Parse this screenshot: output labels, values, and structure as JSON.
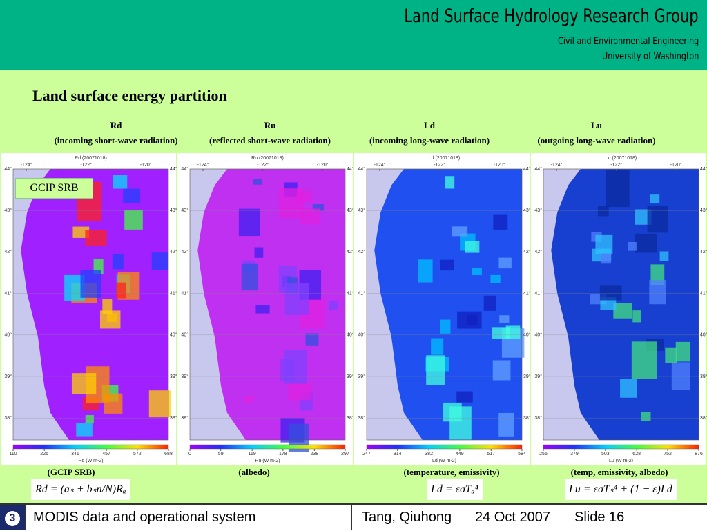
{
  "header": {
    "title": "Land Surface Hydrology Research Group",
    "subtitle": [
      "Civil and Environmental Engineering",
      "University of Washington"
    ]
  },
  "slide_title": "Land surface energy partition",
  "overlay_label": "GCIP SRB",
  "map_axes": {
    "lon_ticks": [
      {
        "value": -124,
        "label": "-124°"
      },
      {
        "value": -122,
        "label": "-122°"
      },
      {
        "value": -120,
        "label": "-120°"
      }
    ],
    "lat_ticks": [
      {
        "value": 44,
        "label": "44°"
      },
      {
        "value": 43,
        "label": "43°"
      },
      {
        "value": 42,
        "label": "42°"
      },
      {
        "value": 41,
        "label": "41°"
      },
      {
        "value": 40,
        "label": "40°"
      },
      {
        "value": 39,
        "label": "39°"
      },
      {
        "value": 38,
        "label": "38°"
      }
    ]
  },
  "columns": [
    {
      "symbol": "Rd",
      "description": "(incoming short-wave radiation)",
      "map_title": "Rd (20071018)",
      "colorbar_ticks": [
        110,
        226,
        341,
        457,
        572,
        688
      ],
      "colorbar_unit": "Rd (W m-2)",
      "note": "(GCIP SRB)",
      "formula": "Rd = (aₛ + bₛn/N)Rₐ"
    },
    {
      "symbol": "Ru",
      "description": "(reflected short-wave radiation)",
      "map_title": "Ru (20071018)",
      "colorbar_ticks": [
        0,
        59,
        119,
        178,
        238,
        297
      ],
      "colorbar_unit": "Ru (W m-2)",
      "note": "(albedo)"
    },
    {
      "symbol": "Ld",
      "description": "(incoming long-wave radiation)",
      "map_title": "Ld (20071018)",
      "colorbar_ticks": [
        247,
        314,
        382,
        449,
        517,
        584
      ],
      "colorbar_unit": "Ld (W m-2)",
      "note": "(temperature, emissivity)",
      "formula": "Ld = εσTₐ⁴"
    },
    {
      "symbol": "Lu",
      "description": "(outgoing long-wave radiation)",
      "map_title": "Lu (20071018)",
      "colorbar_ticks": [
        255,
        379,
        503,
        628,
        752,
        876
      ],
      "colorbar_unit": "Lu (W m-2)",
      "note": "(temp, emissivity, albedo)",
      "formula": "Lu = εσTₛ⁴ + (1 − ε)Ld"
    }
  ],
  "footer": {
    "number": "3",
    "topic": "MODIS data and operational system",
    "author": "Tang, Qiuhong",
    "date": "24 Oct 2007",
    "slide": "Slide 16"
  }
}
